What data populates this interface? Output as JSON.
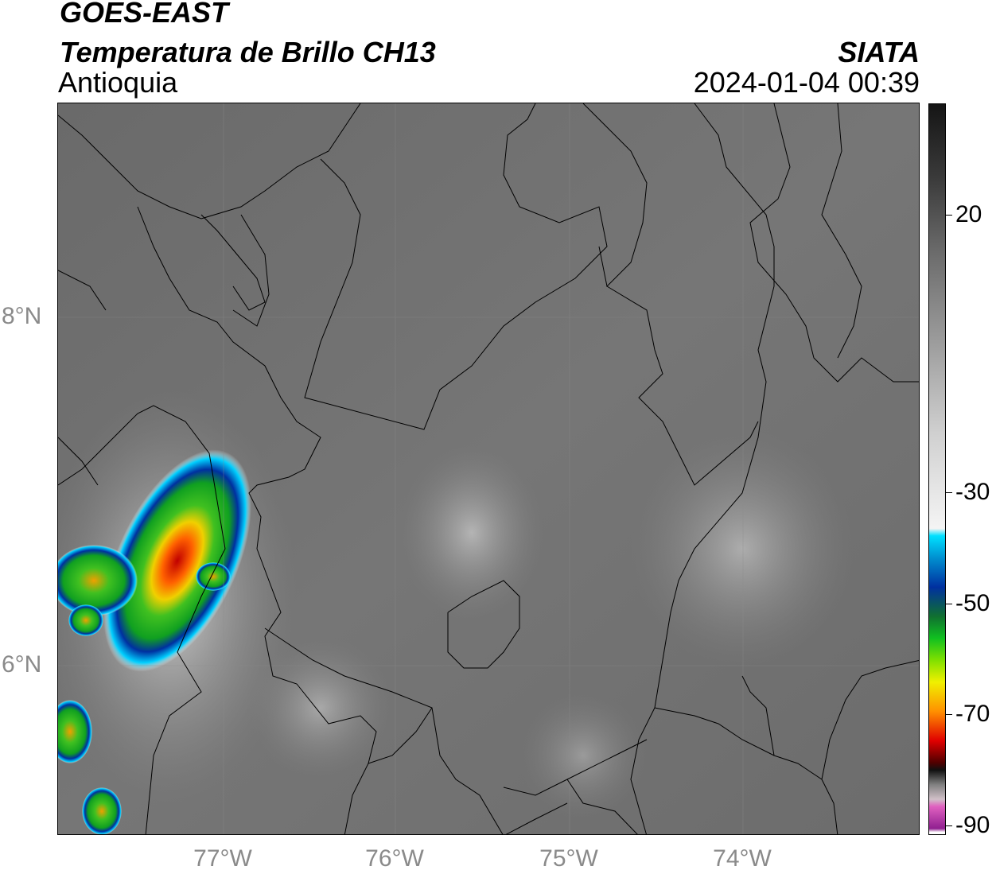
{
  "header": {
    "satellite": "GOES-EAST",
    "product": "Temperatura de Brillo CH13",
    "region": "Antioquia",
    "agency": "SIATA",
    "datetime": "2024-01-04 00:39"
  },
  "map": {
    "lat_labels": [
      "8°N",
      "6°N"
    ],
    "lon_labels": [
      "77°W",
      "76°W",
      "75°W",
      "74°W"
    ],
    "background": "#6e6e6e",
    "graticule": true
  },
  "colorbar": {
    "labels": [
      "20",
      "-30",
      "-50",
      "-70",
      "-90"
    ],
    "palette": {
      "warm_gray_dark": "#1a1a1a",
      "gray_light": "#f2f2f2",
      "cyan": "#00e0ff",
      "blue": "#0030a0",
      "green": "#10c020",
      "yellow": "#f0f000",
      "orange": "#ff9000",
      "red": "#e00000",
      "dark_red": "#400000",
      "pink": "#e060c0",
      "purple": "#902090"
    }
  }
}
